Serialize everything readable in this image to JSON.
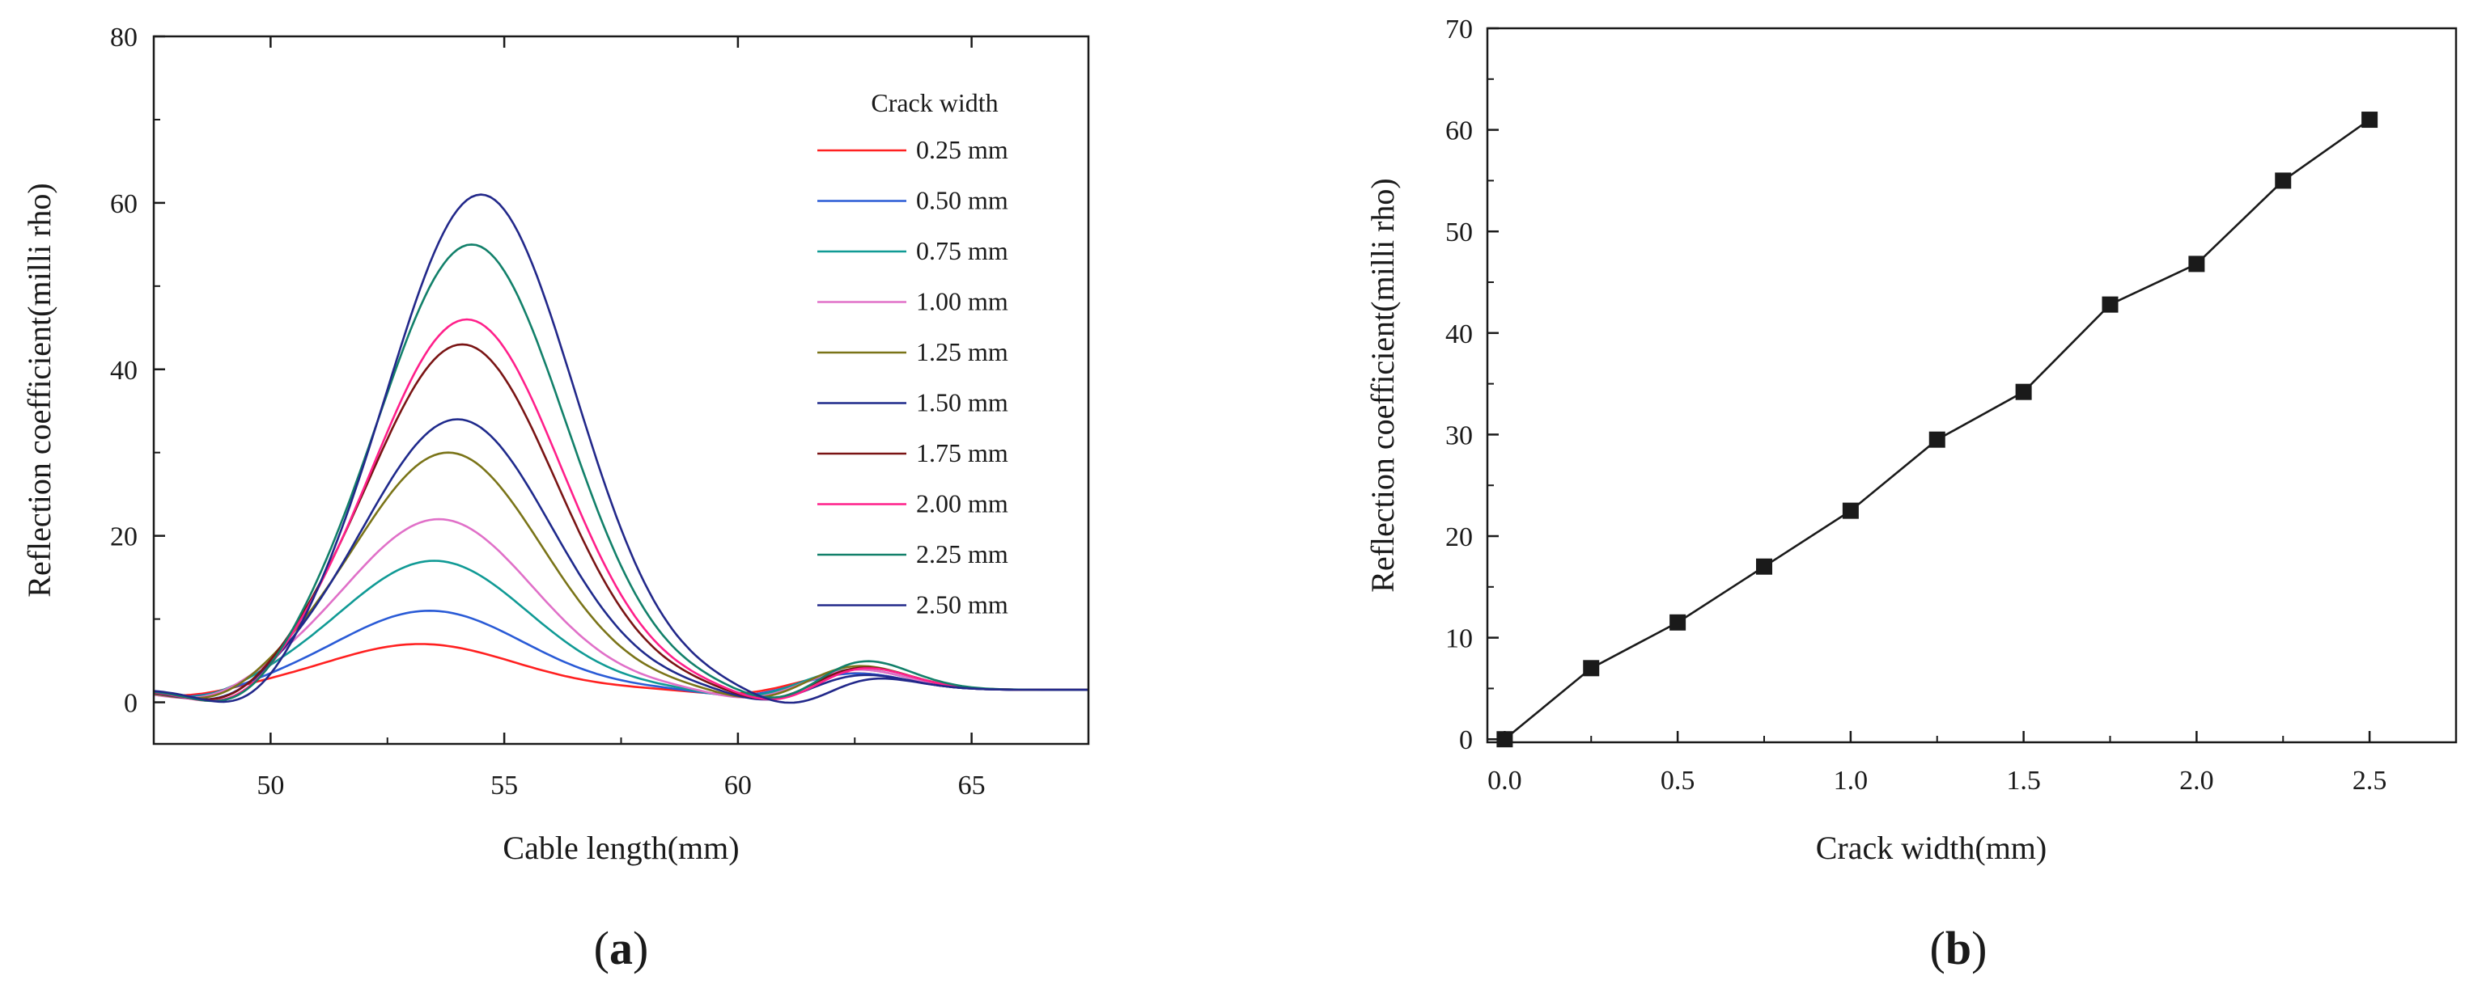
{
  "chart_data": [
    {
      "type": "line",
      "panel": "(a)",
      "panel_label_open": "(",
      "panel_label_letter": "a",
      "panel_label_close": ")",
      "xlabel": "Cable length(mm)",
      "ylabel": "Reflection coefficient(milli rho)",
      "xlim": [
        47.5,
        67.5
      ],
      "ylim": [
        -5,
        80
      ],
      "xticks": [
        50,
        55,
        60,
        65
      ],
      "yticks": [
        0,
        20,
        40,
        60,
        80
      ],
      "legend_title": "Crack width",
      "legend_position": "top-right",
      "curve_model": {
        "peak_center_x": [
          53.2,
          53.4,
          53.5,
          53.6,
          53.8,
          54.0,
          54.1,
          54.2,
          54.3,
          54.5
        ],
        "peak_width_sigma": 2.0,
        "baseline": 1.5,
        "secondary_bump_x": 62.5,
        "secondary_bump_amplitude": [
          2.0,
          2.0,
          2.5,
          2.5,
          3.0,
          2.0,
          3.0,
          3.0,
          4.0,
          2.0
        ]
      },
      "series": [
        {
          "name": "0.25 mm",
          "color": "#ff2020",
          "peak": 7
        },
        {
          "name": "0.50 mm",
          "color": "#2a5bd6",
          "peak": 11
        },
        {
          "name": "0.75 mm",
          "color": "#109a95",
          "peak": 17
        },
        {
          "name": "1.00 mm",
          "color": "#e070c8",
          "peak": 22
        },
        {
          "name": "1.25 mm",
          "color": "#7a7418",
          "peak": 30
        },
        {
          "name": "1.50 mm",
          "color": "#1f2a8c",
          "peak": 34
        },
        {
          "name": "1.75 mm",
          "color": "#7a1414",
          "peak": 43
        },
        {
          "name": "2.00 mm",
          "color": "#ff1f8a",
          "peak": 46
        },
        {
          "name": "2.25 mm",
          "color": "#12806a",
          "peak": 55
        },
        {
          "name": "2.50 mm",
          "color": "#22288a",
          "peak": 61
        }
      ]
    },
    {
      "type": "line",
      "panel": "(b)",
      "panel_label_open": "(",
      "panel_label_letter": "b",
      "panel_label_close": ")",
      "xlabel": "Crack width(mm)",
      "ylabel": "Reflection coefficient(milli rho)",
      "xlim": [
        -0.05,
        2.75
      ],
      "ylim": [
        -0.3,
        70
      ],
      "xticks": [
        "0.0",
        "0.5",
        "1.0",
        "1.5",
        "2.0",
        "2.5"
      ],
      "yticks": [
        0,
        10,
        20,
        30,
        40,
        50,
        60,
        70
      ],
      "marker": "square",
      "line_color": "#1a1a1a",
      "x": [
        0,
        0.25,
        0.5,
        0.75,
        1.0,
        1.25,
        1.5,
        1.75,
        2.0,
        2.25,
        2.5
      ],
      "y": [
        0,
        7,
        11.5,
        17,
        22.5,
        29.5,
        34.2,
        42.8,
        46.8,
        55,
        61
      ]
    }
  ]
}
